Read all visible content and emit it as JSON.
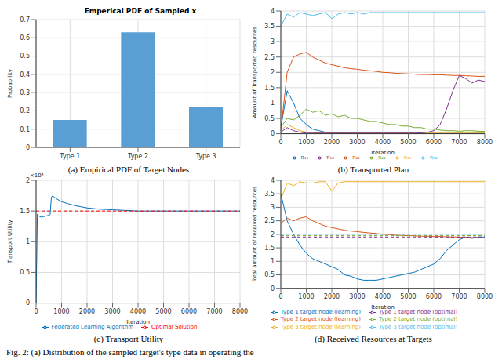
{
  "caption": "Fig. 2: (a) Distribution of the sampled target's type data in operating the",
  "chart_data": [
    {
      "type": "bar",
      "caption": "(a) Empirical PDF of Target Nodes",
      "title": "Emperical PDF of Sampled x",
      "ylabel": "Probability",
      "categories": [
        "Type 1",
        "Type 2",
        "Type 3"
      ],
      "values": [
        0.15,
        0.63,
        0.22
      ],
      "color": "#5a9fd4",
      "ylim": [
        0,
        0.7
      ],
      "yticks": [
        0,
        0.1,
        0.2,
        0.3,
        0.4,
        0.5,
        0.6,
        0.7
      ],
      "grid": true
    },
    {
      "type": "line",
      "caption": "(b) Transported Plan",
      "xlabel": "Iteration",
      "ylabel": "Amount of Transported resources",
      "x": [
        0,
        250,
        500,
        750,
        1000,
        1250,
        1500,
        1750,
        2000,
        2250,
        2500,
        2750,
        3000,
        3250,
        3500,
        3750,
        4000,
        4250,
        4500,
        4750,
        5000,
        5250,
        5500,
        5750,
        6000,
        6250,
        6500,
        6750,
        7000,
        7250,
        7500,
        7750,
        8000
      ],
      "xlim": [
        0,
        8000
      ],
      "xticks": [
        0,
        1000,
        2000,
        3000,
        4000,
        5000,
        6000,
        7000,
        8000
      ],
      "ylim": [
        0,
        4
      ],
      "yticks": [
        0,
        0.5,
        1,
        1.5,
        2,
        2.5,
        3,
        3.5,
        4
      ],
      "grid": true,
      "legend": "bottom",
      "series": [
        {
          "name": "π₁₁",
          "color": "#0072bd",
          "values": [
            0.2,
            1.4,
            1.0,
            0.5,
            0.3,
            0.15,
            0.1,
            0.05,
            0.03,
            0.02,
            0.02,
            0.01,
            0.01,
            0.01,
            0.01,
            0.01,
            0.01,
            0.01,
            0.01,
            0.01,
            0.01,
            0.01,
            0.01,
            0.01,
            0.01,
            0.01,
            0.01,
            0.01,
            0.01,
            0.01,
            0.01,
            0.01,
            0.01
          ]
        },
        {
          "name": "π₂₁",
          "color": "#d95319",
          "values": [
            0.1,
            2.0,
            2.5,
            2.6,
            2.65,
            2.5,
            2.4,
            2.3,
            2.25,
            2.2,
            2.15,
            2.12,
            2.1,
            2.07,
            2.05,
            2.03,
            2.0,
            1.99,
            1.97,
            1.96,
            1.95,
            1.94,
            1.93,
            1.93,
            1.92,
            1.92,
            1.91,
            1.9,
            1.9,
            1.89,
            1.88,
            1.87,
            1.87
          ]
        },
        {
          "name": "π₃₁",
          "color": "#edb120",
          "values": [
            0.1,
            0.3,
            0.2,
            0.1,
            0.05,
            0.04,
            0.03,
            0.03,
            0.02,
            0.02,
            0.02,
            0.02,
            0.02,
            0.02,
            0.02,
            0.02,
            0.02,
            0.02,
            0.02,
            0.02,
            0.02,
            0.02,
            0.02,
            0.02,
            0.02,
            0.02,
            0.02,
            0.02,
            0.02,
            0.02,
            0.02,
            0.02,
            0.02
          ]
        },
        {
          "name": "π₁₂",
          "color": "#7e2f8e",
          "values": [
            0.05,
            0.2,
            0.1,
            0.05,
            0.02,
            0.02,
            0.02,
            0.02,
            0.02,
            0.02,
            0.02,
            0.02,
            0.02,
            0.02,
            0.02,
            0.02,
            0.02,
            0.02,
            0.02,
            0.02,
            0.02,
            0.02,
            0.03,
            0.05,
            0.1,
            0.3,
            0.8,
            1.4,
            1.9,
            1.8,
            1.65,
            1.75,
            1.7
          ]
        },
        {
          "name": "π₂₂",
          "color": "#77ac30",
          "values": [
            0.2,
            0.5,
            0.45,
            0.6,
            0.8,
            0.7,
            0.75,
            0.6,
            0.65,
            0.55,
            0.6,
            0.5,
            0.5,
            0.45,
            0.4,
            0.4,
            0.35,
            0.3,
            0.3,
            0.25,
            0.25,
            0.2,
            0.2,
            0.15,
            0.15,
            0.12,
            0.1,
            0.1,
            0.08,
            0.1,
            0.1,
            0.08,
            0.08
          ]
        },
        {
          "name": "π₃₂",
          "color": "#4dbeee",
          "values": [
            3.5,
            3.9,
            3.8,
            3.95,
            3.9,
            3.85,
            3.9,
            3.95,
            3.75,
            3.9,
            3.95,
            3.9,
            3.95,
            3.9,
            3.95,
            3.95,
            3.95,
            3.95,
            3.95,
            3.95,
            3.95,
            3.95,
            3.95,
            3.95,
            3.95,
            3.95,
            3.95,
            3.95,
            3.95,
            3.95,
            3.95,
            3.95,
            3.95
          ]
        }
      ]
    },
    {
      "type": "line",
      "caption": "(c) Transport Utility",
      "xlabel": "Iteration",
      "ylabel": "Transport Utility",
      "annotation": "×10⁴",
      "x": [
        0,
        50,
        100,
        200,
        300,
        400,
        500,
        550,
        600,
        650,
        700,
        800,
        1000,
        1250,
        1500,
        1750,
        2000,
        2500,
        3000,
        3500,
        4000,
        4500,
        5000,
        5500,
        6000,
        6500,
        7000,
        7500,
        8000
      ],
      "xlim": [
        0,
        8000
      ],
      "xticks": [
        0,
        1000,
        2000,
        3000,
        4000,
        5000,
        6000,
        7000,
        8000
      ],
      "ylim": [
        0,
        2
      ],
      "yticks": [
        0,
        0.5,
        1,
        1.5,
        2
      ],
      "grid": true,
      "legend": "bottom",
      "series": [
        {
          "name": "Federated Learning Algorithm",
          "color": "#0072bd",
          "line_style": "solid",
          "values": [
            0,
            1.45,
            1.42,
            1.4,
            1.41,
            1.42,
            1.43,
            1.44,
            1.72,
            1.75,
            1.73,
            1.7,
            1.65,
            1.62,
            1.59,
            1.57,
            1.55,
            1.53,
            1.52,
            1.51,
            1.5,
            1.5,
            1.5,
            1.5,
            1.5,
            1.5,
            1.5,
            1.5,
            1.5
          ]
        },
        {
          "name": "Optimal Solution",
          "color": "#ff0000",
          "line_style": "dashed",
          "values": [
            1.5,
            1.5,
            1.5,
            1.5,
            1.5,
            1.5,
            1.5,
            1.5,
            1.5,
            1.5,
            1.5,
            1.5,
            1.5,
            1.5,
            1.5,
            1.5,
            1.5,
            1.5,
            1.5,
            1.5,
            1.5,
            1.5,
            1.5,
            1.5,
            1.5,
            1.5,
            1.5,
            1.5,
            1.5
          ]
        }
      ]
    },
    {
      "type": "line",
      "caption": "(d) Received Resources at Targets",
      "xlabel": "Iteration",
      "ylabel": "Total amount of received resources",
      "x": [
        0,
        250,
        500,
        750,
        1000,
        1250,
        1500,
        1750,
        2000,
        2250,
        2500,
        2750,
        3000,
        3250,
        3500,
        3750,
        4000,
        4250,
        4500,
        4750,
        5000,
        5250,
        5500,
        5750,
        6000,
        6250,
        6500,
        6750,
        7000,
        7250,
        7500,
        7750,
        8000
      ],
      "xlim": [
        0,
        8000
      ],
      "xticks": [
        0,
        1000,
        2000,
        3000,
        4000,
        5000,
        6000,
        7000,
        8000
      ],
      "ylim": [
        0,
        4
      ],
      "yticks": [
        0,
        0.5,
        1,
        1.5,
        2,
        2.5,
        3,
        3.5,
        4
      ],
      "grid": true,
      "legend": "bottom",
      "series": [
        {
          "name": "Type 1 target node (learning)",
          "color": "#0072bd",
          "line_style": "solid",
          "values": [
            3.5,
            2.5,
            2.0,
            1.6,
            1.3,
            1.1,
            1.0,
            0.9,
            0.8,
            0.7,
            0.5,
            0.45,
            0.35,
            0.3,
            0.3,
            0.3,
            0.35,
            0.4,
            0.45,
            0.5,
            0.55,
            0.6,
            0.7,
            0.8,
            0.9,
            1.1,
            1.4,
            1.6,
            1.8,
            1.9,
            1.85,
            1.9,
            1.9
          ]
        },
        {
          "name": "Type 2 target node (learning)",
          "color": "#d95319",
          "line_style": "solid",
          "values": [
            2.4,
            2.6,
            2.5,
            2.6,
            2.65,
            2.5,
            2.4,
            2.3,
            2.25,
            2.2,
            2.15,
            2.12,
            2.1,
            2.07,
            2.05,
            2.03,
            2.0,
            1.99,
            1.97,
            1.96,
            1.95,
            1.94,
            1.93,
            1.93,
            1.92,
            1.92,
            1.91,
            1.9,
            1.9,
            1.89,
            1.88,
            1.87,
            1.87
          ]
        },
        {
          "name": "Type 3 target node (learning)",
          "color": "#edb120",
          "line_style": "solid",
          "values": [
            3.3,
            3.9,
            3.8,
            3.95,
            3.9,
            3.9,
            3.95,
            3.95,
            3.6,
            3.9,
            3.95,
            3.95,
            3.95,
            3.95,
            3.95,
            3.95,
            3.95,
            3.95,
            3.95,
            3.95,
            3.95,
            3.95,
            3.95,
            3.95,
            3.95,
            3.95,
            3.95,
            3.95,
            3.95,
            3.95,
            3.95,
            3.95,
            3.95
          ]
        },
        {
          "name": "Type 1 target node (optimal)",
          "color": "#7e2f8e",
          "line_style": "dashed",
          "values": [
            1.9,
            1.9,
            1.9,
            1.9,
            1.9,
            1.9,
            1.9,
            1.9,
            1.9,
            1.9,
            1.9,
            1.9,
            1.9,
            1.9,
            1.9,
            1.9,
            1.9,
            1.9,
            1.9,
            1.9,
            1.9,
            1.9,
            1.9,
            1.9,
            1.9,
            1.9,
            1.9,
            1.9,
            1.9,
            1.9,
            1.9,
            1.9,
            1.9
          ]
        },
        {
          "name": "Type 2 target node (optimal)",
          "color": "#77ac30",
          "line_style": "dashed",
          "values": [
            1.95,
            1.95,
            1.95,
            1.95,
            1.95,
            1.95,
            1.95,
            1.95,
            1.95,
            1.95,
            1.95,
            1.95,
            1.95,
            1.95,
            1.95,
            1.95,
            1.95,
            1.95,
            1.95,
            1.95,
            1.95,
            1.95,
            1.95,
            1.95,
            1.95,
            1.95,
            1.95,
            1.95,
            1.95,
            1.95,
            1.95,
            1.95,
            1.95
          ]
        },
        {
          "name": "Type 3 target node (optimal)",
          "color": "#4dbeee",
          "line_style": "dashed",
          "values": [
            2.0,
            2.0,
            2.0,
            2.0,
            2.0,
            2.0,
            2.0,
            2.0,
            2.0,
            2.0,
            2.0,
            2.0,
            2.0,
            2.0,
            2.0,
            2.0,
            2.0,
            2.0,
            2.0,
            2.0,
            2.0,
            2.0,
            2.0,
            2.0,
            2.0,
            2.0,
            2.0,
            2.0,
            2.0,
            2.0,
            2.0,
            2.0,
            2.0
          ]
        }
      ]
    }
  ]
}
